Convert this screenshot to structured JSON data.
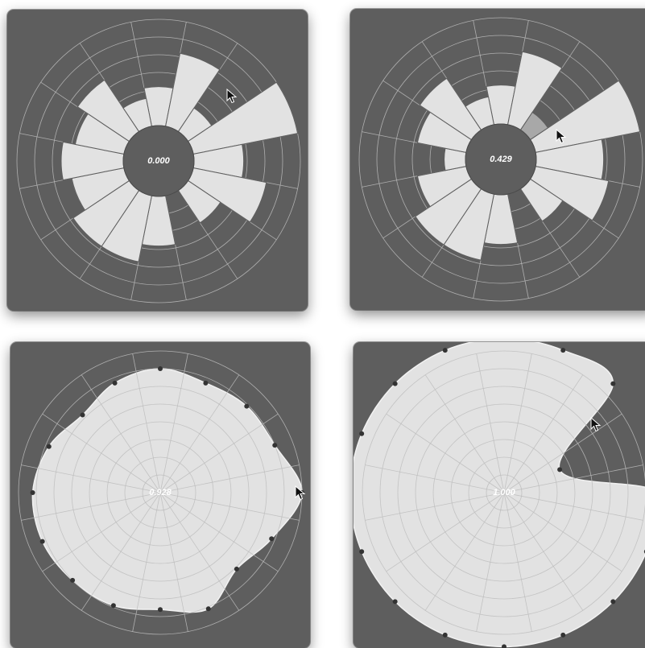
{
  "colors": {
    "panel_bg": "#5e5e5e",
    "grid": "#bdbdbd",
    "fill": "#e2e2e2",
    "highlight": "#a8a8a8",
    "marker": "#333333",
    "label": "#ffffff"
  },
  "icons": {
    "pointer": "mouse-pointer-cursor-icon"
  },
  "chart_data": [
    {
      "type": "polar-bar",
      "center_label": "0.000",
      "sectors": 16,
      "rlim": [
        0,
        8
      ],
      "inner_radius": 2,
      "values": [
        4.2,
        6.2,
        3.6,
        8,
        4.8,
        6.2,
        4.2,
        1.5,
        4.8,
        5.8,
        5.8,
        5,
        5.5,
        4.8,
        5.5,
        3.6
      ],
      "highlight_index": null
    },
    {
      "type": "polar-bar",
      "center_label": "0.429",
      "sectors": 16,
      "rlim": [
        0,
        8
      ],
      "inner_radius": 2,
      "values": [
        4.2,
        6.2,
        3.2,
        8,
        5.8,
        6.2,
        4.2,
        1.5,
        4.8,
        5.8,
        5.8,
        4.8,
        3.2,
        4.8,
        5.5,
        3.6
      ],
      "highlight_index": 2
    },
    {
      "type": "radar",
      "center_label": "0.928",
      "sectors": 16,
      "rlim": [
        0,
        8
      ],
      "values": [
        7,
        6.7,
        6.9,
        7,
        8,
        6.8,
        6.1,
        7.1,
        6.6,
        6.9,
        7,
        7.2,
        7.2,
        6.8,
        6.2,
        6.7
      ]
    },
    {
      "type": "radar",
      "center_label": "1.000",
      "sectors": 16,
      "rlim": [
        0,
        8
      ],
      "values": [
        8.7,
        8.7,
        8.7,
        3.4,
        8.7,
        8.7,
        8.7,
        8.7,
        8.7,
        8.7,
        8.7,
        8.7,
        8.7,
        8.7,
        8.7,
        8.7
      ]
    }
  ]
}
